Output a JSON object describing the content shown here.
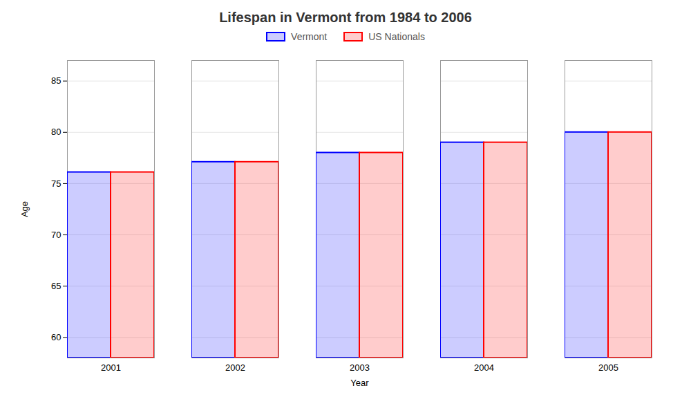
{
  "chart_data": {
    "type": "bar",
    "title": "Lifespan in Vermont from 1984 to 2006",
    "xlabel": "Year",
    "ylabel": "Age",
    "categories": [
      2001,
      2002,
      2003,
      2004,
      2005
    ],
    "series": [
      {
        "name": "Vermont",
        "color": "#0000ff",
        "values": [
          76.1,
          77.1,
          78.0,
          79.0,
          80.0
        ]
      },
      {
        "name": "US Nationals",
        "color": "#ff0000",
        "values": [
          76.1,
          77.1,
          78.0,
          79.0,
          80.0
        ]
      }
    ],
    "ylim": [
      58,
      87
    ],
    "yticks": [
      60,
      65,
      70,
      75,
      80,
      85
    ],
    "grid": true,
    "legend": "top"
  }
}
